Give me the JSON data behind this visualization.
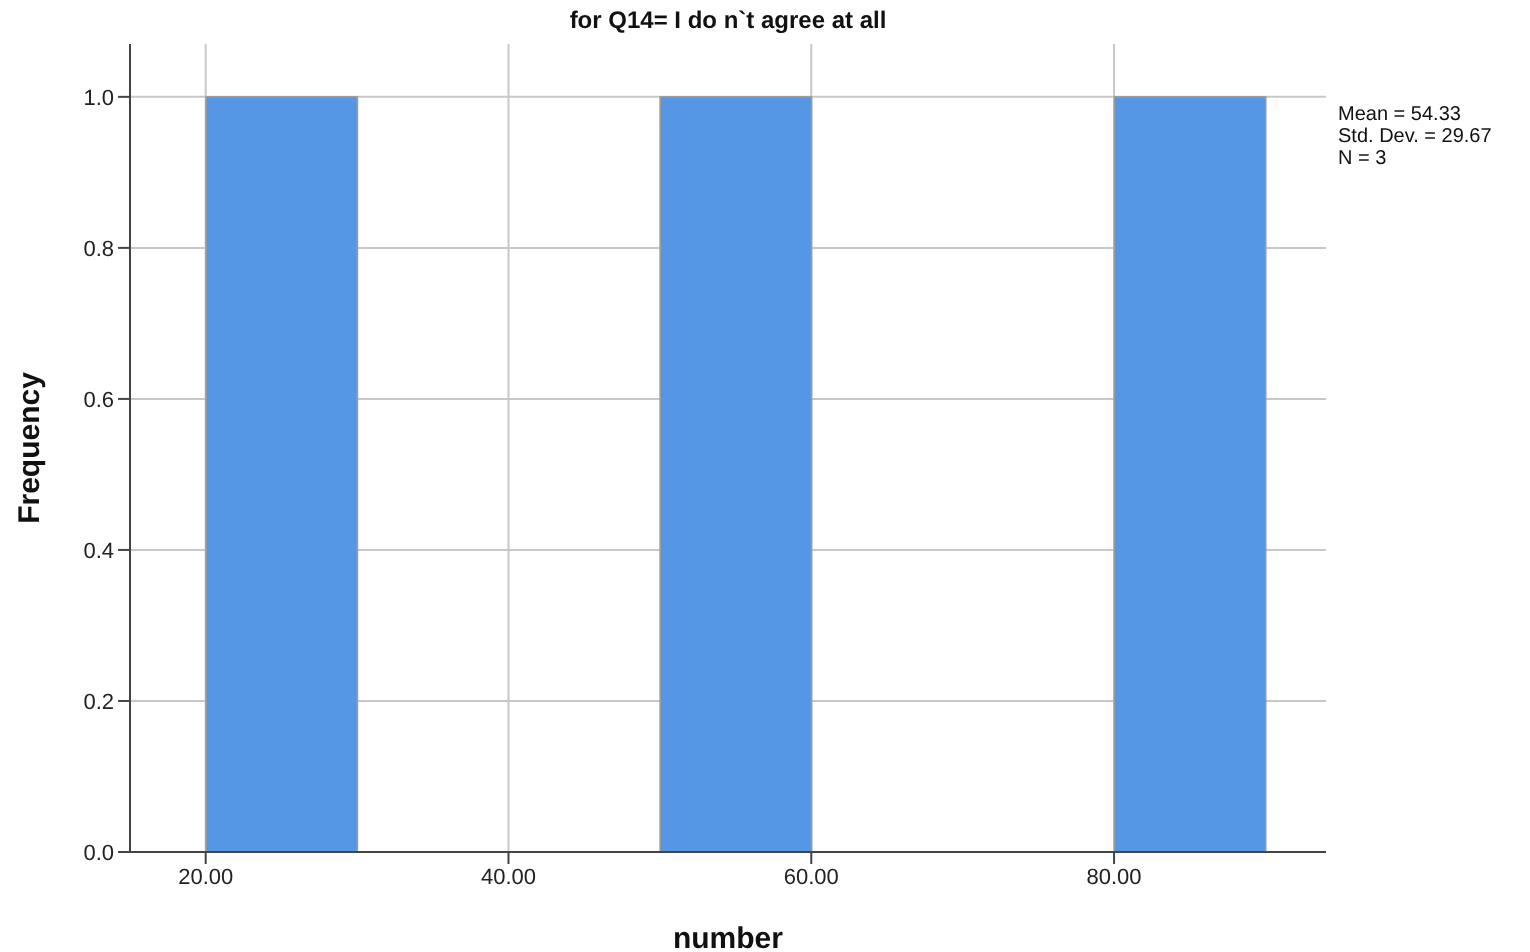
{
  "chart_data": {
    "type": "histogram",
    "title": "for Q14= I do n`t agree at all",
    "xlabel": "number",
    "ylabel": "Frequency",
    "bins": [
      20,
      30,
      40,
      50,
      60,
      70,
      80,
      90
    ],
    "values": [
      1,
      0,
      0,
      1,
      0,
      0,
      1
    ],
    "color": "#5596e5",
    "xlim": [
      15,
      94
    ],
    "xticks": [
      {
        "value": 20,
        "label": "20.00"
      },
      {
        "value": 40,
        "label": "40.00"
      },
      {
        "value": 60,
        "label": "60.00"
      },
      {
        "value": 80,
        "label": "80.00"
      }
    ],
    "ylim": [
      0,
      1.07
    ],
    "yticks": [
      {
        "value": 0,
        "label": "0.0"
      },
      {
        "value": 0.2,
        "label": "0.2"
      },
      {
        "value": 0.4,
        "label": "0.4"
      },
      {
        "value": 0.6,
        "label": "0.6"
      },
      {
        "value": 0.8,
        "label": "0.8"
      },
      {
        "value": 1,
        "label": "1.0"
      }
    ],
    "grid": true,
    "annotations": [
      "Mean = 54.33",
      "Std. Dev. = 29.67",
      "N = 3"
    ]
  }
}
